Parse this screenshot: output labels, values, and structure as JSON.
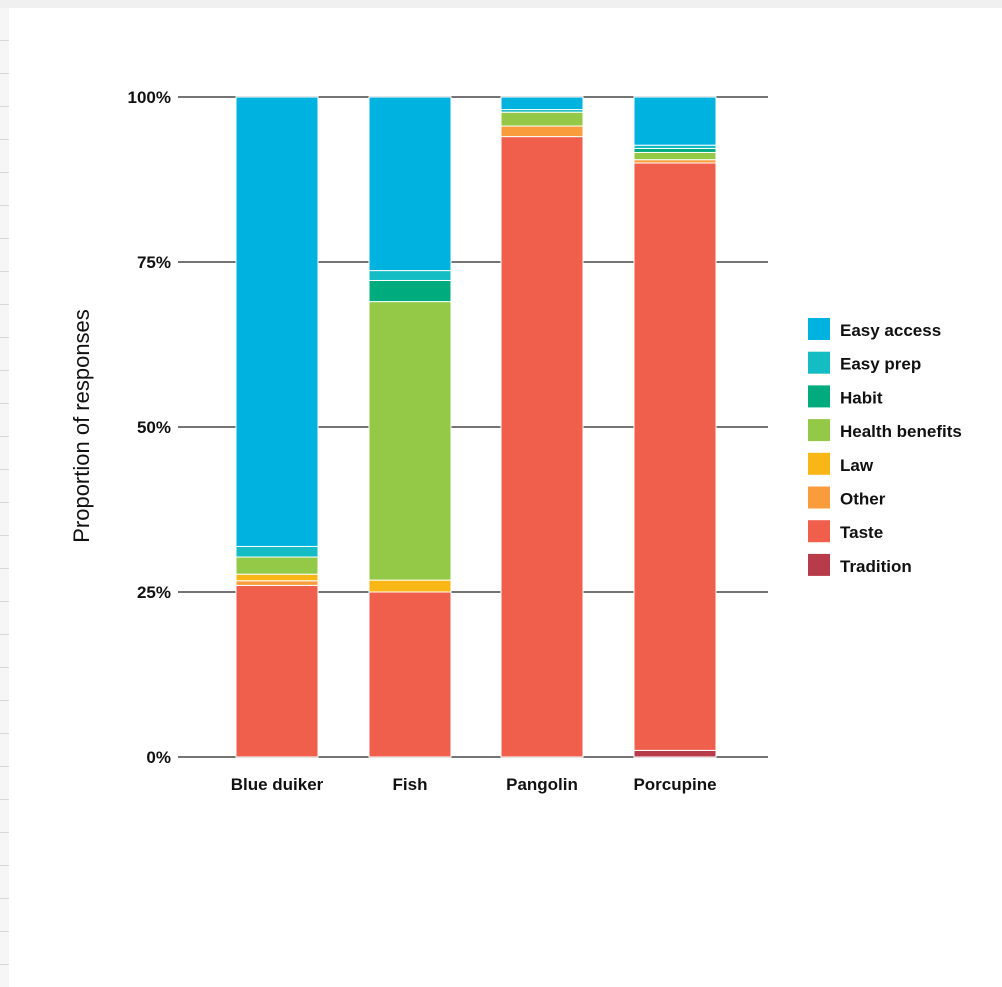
{
  "chart_data": {
    "type": "bar",
    "stacked": true,
    "ylabel": "Proportion of responses",
    "xlabel": "",
    "ylim": [
      0,
      100
    ],
    "yticks": [
      "0%",
      "25%",
      "50%",
      "75%",
      "100%"
    ],
    "ytick_values": [
      0,
      25,
      50,
      75,
      100
    ],
    "grid": "horizontal",
    "legend_position": "right",
    "categories": [
      "Blue duiker",
      "Fish",
      "Pangolin",
      "Porcupine"
    ],
    "series": [
      {
        "name": "Tradition",
        "color": "#b83b4b",
        "values": [
          0.0,
          0.0,
          0.0,
          1.0
        ]
      },
      {
        "name": "Taste",
        "color": "#f05f4c",
        "values": [
          26.0,
          25.0,
          94.0,
          89.0
        ]
      },
      {
        "name": "Other",
        "color": "#f99c3c",
        "values": [
          0.7,
          0.0,
          1.6,
          0.5
        ]
      },
      {
        "name": "Law",
        "color": "#f9b617",
        "values": [
          1.0,
          1.8,
          0.0,
          0.0
        ]
      },
      {
        "name": "Health benefits",
        "color": "#94c947",
        "values": [
          2.6,
          42.2,
          2.1,
          1.1
        ]
      },
      {
        "name": "Habit",
        "color": "#00ab7d",
        "values": [
          0.0,
          3.2,
          0.0,
          0.6
        ]
      },
      {
        "name": "Easy prep",
        "color": "#14bcc4",
        "values": [
          1.6,
          1.5,
          0.4,
          0.5
        ]
      },
      {
        "name": "Easy access",
        "color": "#00b2df",
        "values": [
          68.1,
          26.3,
          1.9,
          7.3
        ]
      }
    ],
    "legend_order": [
      "Easy access",
      "Easy prep",
      "Habit",
      "Health benefits",
      "Law",
      "Other",
      "Taste",
      "Tradition"
    ]
  }
}
